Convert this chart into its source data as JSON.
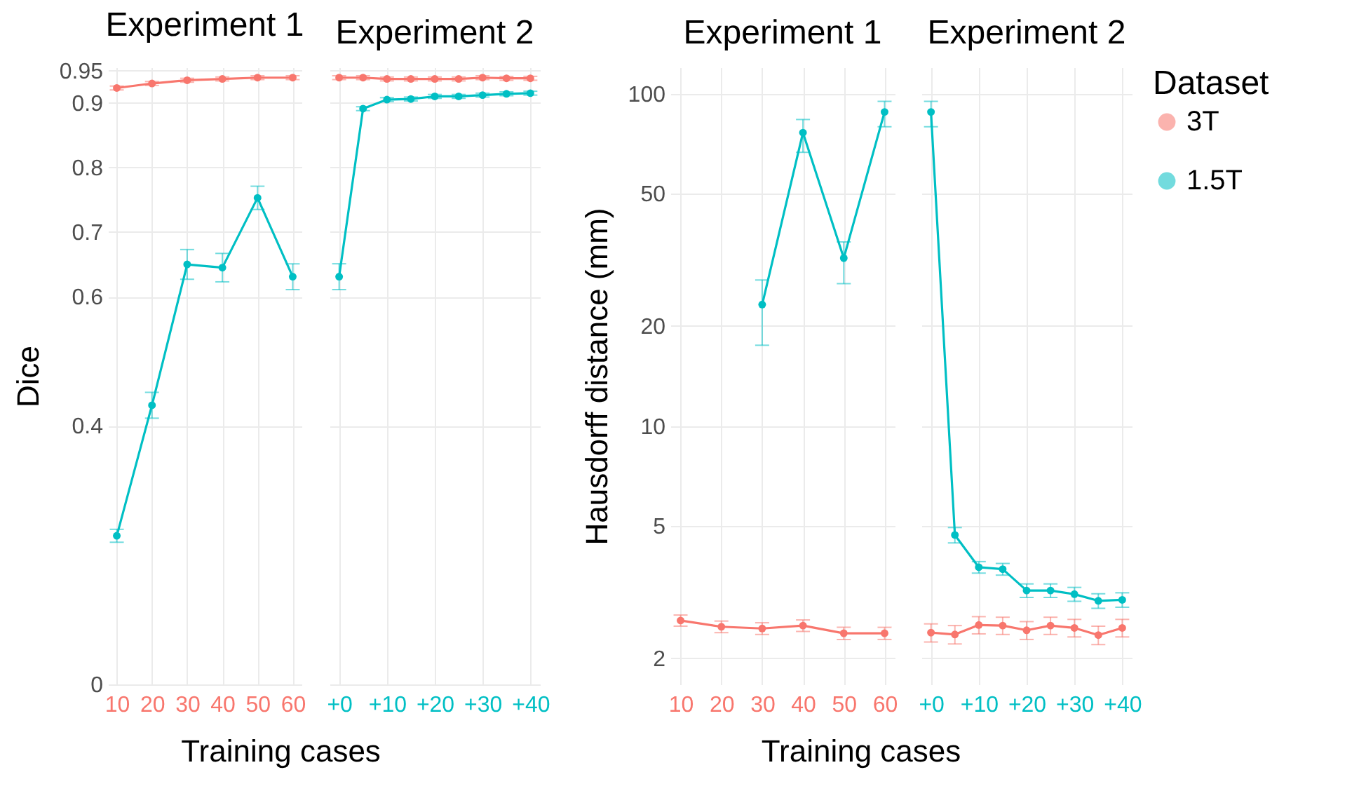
{
  "chart_data": [
    {
      "type": "line",
      "title": "Experiment 1",
      "xlabel": "Training cases",
      "ylabel": "Dice",
      "x": [
        10,
        20,
        30,
        40,
        50,
        60
      ],
      "xlim": [
        7.5,
        62.5
      ],
      "xticks": [
        10,
        20,
        30,
        40,
        50,
        60
      ],
      "ylim": [
        0,
        0.955
      ],
      "yticks": [
        0,
        0.4,
        0.6,
        0.7,
        0.8,
        0.9,
        0.95
      ],
      "grid": true,
      "marker": "circle",
      "legend": "right",
      "legend_title": "Dataset",
      "series": [
        {
          "name": "3T",
          "color": "#f8766d",
          "values": [
            0.923,
            0.93,
            0.935,
            0.937,
            0.939,
            0.939
          ],
          "errors": [
            0.003,
            0.003,
            0.003,
            0.003,
            0.003,
            0.003
          ]
        },
        {
          "name": "1.5T",
          "color": "#00bfc4",
          "values": [
            0.23,
            0.432,
            0.65,
            0.645,
            0.753,
            0.631
          ],
          "errors": [
            0.01,
            0.02,
            0.023,
            0.022,
            0.018,
            0.02
          ]
        }
      ]
    },
    {
      "type": "line",
      "title": "Experiment 2",
      "x": [
        0,
        5,
        10,
        15,
        20,
        25,
        30,
        35,
        40
      ],
      "xlim": [
        -2,
        42
      ],
      "xticks": [
        {
          "value": 0,
          "label": "+0"
        },
        {
          "value": 10,
          "label": "+10"
        },
        {
          "value": 20,
          "label": "+20"
        },
        {
          "value": 30,
          "label": "+30"
        },
        {
          "value": 40,
          "label": "+40"
        }
      ],
      "ylim": [
        0,
        0.955
      ],
      "yticks": [
        0,
        0.4,
        0.6,
        0.7,
        0.8,
        0.9,
        0.95
      ],
      "grid": true,
      "marker": "circle",
      "tick_labels": "x",
      "series": [
        {
          "name": "3T",
          "color": "#f8766d",
          "values": [
            0.939,
            0.939,
            0.937,
            0.937,
            0.937,
            0.937,
            0.939,
            0.938,
            0.938
          ],
          "errors": [
            0.003,
            0.003,
            0.003,
            0.003,
            0.003,
            0.003,
            0.003,
            0.003,
            0.003
          ]
        },
        {
          "name": "1.5T",
          "color": "#00bfc4",
          "values": [
            0.631,
            0.891,
            0.905,
            0.906,
            0.91,
            0.91,
            0.912,
            0.914,
            0.915
          ],
          "errors": [
            0.02,
            0.003,
            0.003,
            0.003,
            0.003,
            0.003,
            0.003,
            0.003,
            0.003
          ]
        }
      ]
    },
    {
      "type": "line",
      "title": "Experiment 1",
      "xlabel": "Training cases",
      "ylabel": "Hausdorff distance (mm)",
      "x": [
        10,
        20,
        30,
        40,
        50,
        60
      ],
      "xlim": [
        7.5,
        62.5
      ],
      "xticks": [
        10,
        20,
        30,
        40,
        50,
        60
      ],
      "ylim": [
        1.67,
        120
      ],
      "yticks": [
        2,
        5,
        10,
        20,
        50,
        100
      ],
      "log": true,
      "grid": true,
      "marker": "circle",
      "series": [
        {
          "name": "3T",
          "color": "#f8766d",
          "values": [
            2.6,
            2.49,
            2.46,
            2.51,
            2.38,
            2.38
          ],
          "errors": [
            0.1,
            0.1,
            0.1,
            0.1,
            0.1,
            0.1
          ]
        },
        {
          "name": "1.5T",
          "color": "#00bfc4",
          "values": [
            null,
            null,
            23.2,
            76.3,
            32.0,
            88.1
          ],
          "errors": [
            null,
            null,
            [
              17.5,
              27.5
            ],
            [
              66.6,
              83.6
            ],
            [
              26.8,
              35.8
            ],
            [
              79.5,
              94.8
            ]
          ]
        }
      ]
    },
    {
      "type": "line",
      "title": "Experiment 2",
      "x": [
        0,
        5,
        10,
        15,
        20,
        25,
        30,
        35,
        40
      ],
      "xlim": [
        -2,
        42
      ],
      "xticks": [
        {
          "value": 0,
          "label": "+0"
        },
        {
          "value": 10,
          "label": "+10"
        },
        {
          "value": 20,
          "label": "+20"
        },
        {
          "value": 30,
          "label": "+30"
        },
        {
          "value": 40,
          "label": "+40"
        }
      ],
      "ylim": [
        1.67,
        120
      ],
      "yticks": [
        2,
        5,
        10,
        20,
        50,
        100
      ],
      "log": true,
      "grid": true,
      "marker": "circle",
      "tick_labels": "x",
      "series": [
        {
          "name": "3T",
          "color": "#f8766d",
          "values": [
            2.39,
            2.36,
            2.52,
            2.51,
            2.43,
            2.51,
            2.47,
            2.35,
            2.47
          ],
          "errors": [
            0.15,
            0.15,
            0.15,
            0.15,
            0.15,
            0.15,
            0.15,
            0.15,
            0.15
          ]
        },
        {
          "name": "1.5T",
          "color": "#00bfc4",
          "values": [
            88.1,
            4.7,
            3.76,
            3.71,
            3.2,
            3.2,
            3.12,
            2.98,
            3.0
          ],
          "errors": [
            [
              79.5,
              94.8
            ],
            0.25,
            0.15,
            0.15,
            0.15,
            0.15,
            0.15,
            0.15,
            0.15
          ]
        }
      ]
    }
  ]
}
